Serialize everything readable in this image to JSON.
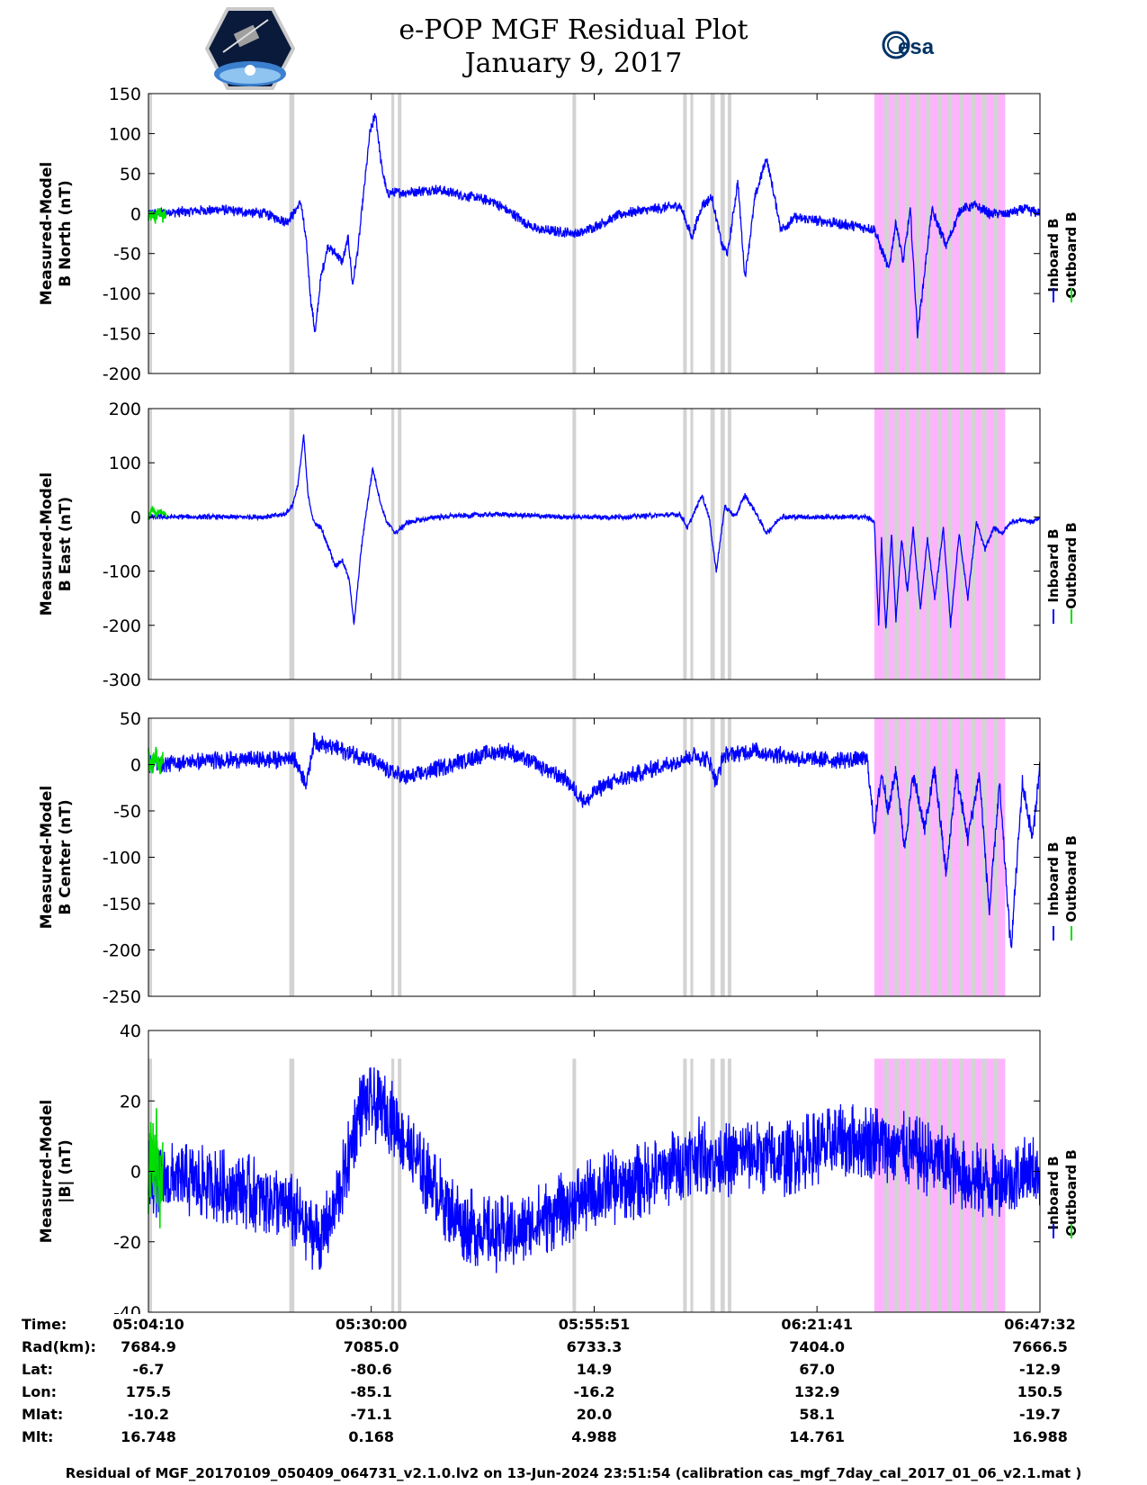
{
  "title": {
    "line1": "e-POP MGF Residual Plot",
    "line2": "January 9, 2017"
  },
  "logos": {
    "left": "e-POP CASSIOPE mission patch",
    "right_text": "esa"
  },
  "colors": {
    "inboard": "#0000ff",
    "outboard": "#00dd00",
    "gray_band": "#d3d3d3",
    "pink_band": "#ffb3ff"
  },
  "x_axis": {
    "t_start_s": 0,
    "t_end_s": 6202,
    "ticks_s": [
      0,
      1550,
      3101,
      4651,
      6202
    ]
  },
  "gray_bands_s": [
    [
      0,
      25
    ],
    [
      980,
      1015
    ],
    [
      1690,
      1710
    ],
    [
      1735,
      1760
    ],
    [
      2950,
      2975
    ],
    [
      3720,
      3745
    ],
    [
      3770,
      3790
    ],
    [
      3910,
      3940
    ],
    [
      3980,
      4010
    ],
    [
      4030,
      4055
    ]
  ],
  "pink_region_s": [
    5050,
    5960
  ],
  "pink_gaps_s": [
    5120,
    5190,
    5265,
    5340,
    5410,
    5490,
    5560,
    5640,
    5720,
    5800,
    5880
  ],
  "legend": {
    "inboard": "Inboard B",
    "outboard": "Outboard B"
  },
  "chart_data": [
    {
      "type": "line",
      "ylabel": [
        "Measured-Model",
        "B North (nT)"
      ],
      "ylim": [
        -200,
        150
      ],
      "yticks": [
        150,
        100,
        50,
        0,
        -50,
        -100,
        -150,
        -200
      ],
      "noise": 7,
      "series": [
        {
          "name": "Inboard B",
          "color": "#0000ff",
          "x": [
            0,
            500,
            800,
            960,
            1010,
            1060,
            1100,
            1130,
            1160,
            1200,
            1250,
            1300,
            1350,
            1390,
            1420,
            1460,
            1500,
            1540,
            1580,
            1620,
            1660,
            2000,
            2400,
            2700,
            3000,
            3300,
            3700,
            3780,
            3850,
            3920,
            3990,
            4030,
            4100,
            4150,
            4220,
            4300,
            4400,
            4500,
            4700,
            4900,
            5050,
            5150,
            5200,
            5250,
            5300,
            5350,
            5450,
            5550,
            5650,
            5750,
            5850,
            5950,
            6100,
            6202
          ],
          "y": [
            0,
            5,
            0,
            -10,
            0,
            15,
            -40,
            -110,
            -150,
            -80,
            -40,
            -50,
            -60,
            -30,
            -90,
            -40,
            30,
            100,
            125,
            60,
            25,
            30,
            15,
            -20,
            -25,
            0,
            10,
            -30,
            10,
            20,
            -40,
            -50,
            40,
            -80,
            20,
            70,
            -20,
            -5,
            -10,
            -15,
            -20,
            -70,
            -10,
            -60,
            5,
            -150,
            5,
            -40,
            5,
            10,
            0,
            0,
            5,
            0
          ]
        },
        {
          "name": "Outboard B",
          "color": "#00dd00",
          "x": [
            0,
            25,
            50,
            75,
            100,
            125
          ],
          "y": [
            -5,
            2,
            -6,
            3,
            -4,
            0
          ]
        }
      ]
    },
    {
      "type": "line",
      "ylabel": [
        "Measured-Model",
        "B East (nT)"
      ],
      "ylim": [
        -300,
        200
      ],
      "yticks": [
        200,
        100,
        0,
        -100,
        -200,
        -300
      ],
      "noise": 5,
      "series": [
        {
          "name": "Inboard B",
          "color": "#0000ff",
          "x": [
            0,
            300,
            800,
            950,
            1000,
            1040,
            1080,
            1110,
            1150,
            1200,
            1260,
            1300,
            1350,
            1400,
            1430,
            1480,
            1510,
            1560,
            1620,
            1660,
            1720,
            1800,
            2000,
            2400,
            2900,
            3300,
            3700,
            3750,
            3800,
            3850,
            3900,
            3950,
            4010,
            4080,
            4150,
            4220,
            4300,
            4400,
            4700,
            5000,
            5050,
            5080,
            5100,
            5130,
            5170,
            5200,
            5240,
            5280,
            5320,
            5370,
            5420,
            5470,
            5530,
            5580,
            5640,
            5700,
            5760,
            5820,
            5880,
            5940,
            6000,
            6080,
            6150,
            6202
          ],
          "y": [
            0,
            0,
            0,
            5,
            20,
            60,
            150,
            40,
            -10,
            -20,
            -60,
            -90,
            -80,
            -120,
            -200,
            -60,
            0,
            90,
            20,
            -10,
            -30,
            -10,
            0,
            5,
            0,
            0,
            5,
            -20,
            10,
            40,
            0,
            -100,
            20,
            0,
            40,
            10,
            -30,
            0,
            0,
            0,
            -10,
            -200,
            -40,
            -210,
            -30,
            -190,
            -40,
            -140,
            -20,
            -170,
            -40,
            -150,
            -20,
            -200,
            -30,
            -150,
            -10,
            -60,
            -20,
            -30,
            -10,
            -5,
            -10,
            0
          ]
        },
        {
          "name": "Outboard B",
          "color": "#00dd00",
          "x": [
            0,
            25,
            50,
            75,
            100,
            125
          ],
          "y": [
            0,
            15,
            5,
            10,
            8,
            5
          ]
        }
      ]
    },
    {
      "type": "line",
      "ylabel": [
        "Measured-Model",
        "B Center (nT)"
      ],
      "ylim": [
        -250,
        50
      ],
      "yticks": [
        50,
        0,
        -50,
        -100,
        -150,
        -200,
        -250
      ],
      "noise": 10,
      "series": [
        {
          "name": "Inboard B",
          "color": "#0000ff",
          "x": [
            0,
            500,
            900,
            1000,
            1050,
            1100,
            1150,
            1250,
            1350,
            1450,
            1550,
            1650,
            1800,
            2000,
            2300,
            2500,
            2700,
            2900,
            3000,
            3050,
            3100,
            3200,
            3400,
            3600,
            3800,
            3900,
            3950,
            4000,
            4200,
            4600,
            5000,
            5050,
            5100,
            5150,
            5200,
            5260,
            5320,
            5400,
            5470,
            5550,
            5620,
            5700,
            5780,
            5850,
            5920,
            6000,
            6080,
            6150,
            6202
          ],
          "y": [
            0,
            5,
            5,
            10,
            -5,
            -20,
            25,
            20,
            15,
            10,
            5,
            -5,
            -15,
            -5,
            10,
            15,
            0,
            -15,
            -35,
            -40,
            -30,
            -20,
            -10,
            0,
            10,
            5,
            -20,
            10,
            15,
            5,
            5,
            -70,
            -10,
            -50,
            -5,
            -90,
            -10,
            -70,
            -5,
            -120,
            -10,
            -80,
            -10,
            -160,
            -20,
            -200,
            -20,
            -80,
            0
          ]
        },
        {
          "name": "Outboard B",
          "color": "#00dd00",
          "x": [
            0,
            25,
            50,
            75,
            100
          ],
          "y": [
            10,
            -5,
            8,
            -3,
            5
          ]
        }
      ]
    },
    {
      "type": "line",
      "ylabel": [
        "Measured-Model",
        "|B| (nT)"
      ],
      "ylim": [
        -40,
        40
      ],
      "yticks": [
        40,
        20,
        0,
        -20,
        -40
      ],
      "noise": 11,
      "series": [
        {
          "name": "Inboard B",
          "color": "#0000ff",
          "x": [
            0,
            300,
            600,
            900,
            1100,
            1200,
            1300,
            1400,
            1450,
            1500,
            1600,
            1700,
            1800,
            1900,
            2050,
            2200,
            2400,
            2600,
            2800,
            3000,
            3200,
            3400,
            3600,
            3800,
            4000,
            4200,
            4400,
            4600,
            4800,
            5000,
            5200,
            5400,
            5600,
            5800,
            6000,
            6202
          ],
          "y": [
            -2,
            -3,
            -5,
            -8,
            -15,
            -20,
            -10,
            5,
            15,
            20,
            18,
            15,
            8,
            0,
            -8,
            -15,
            -18,
            -17,
            -12,
            -8,
            -5,
            -3,
            0,
            5,
            3,
            5,
            3,
            6,
            8,
            9,
            7,
            4,
            1,
            -3,
            -2,
            0
          ]
        },
        {
          "name": "Outboard B",
          "color": "#00dd00",
          "x": [
            0,
            20,
            40,
            60,
            80,
            100
          ],
          "y": [
            -2,
            8,
            -5,
            6,
            -4,
            0
          ]
        }
      ]
    }
  ],
  "footer": {
    "labels": [
      "Time:",
      "Rad(km):",
      "Lat:",
      "Lon:",
      "Mlat:",
      "Mlt:"
    ],
    "columns": [
      [
        "05:04:10",
        "7684.9",
        "-6.7",
        "175.5",
        "-10.2",
        "16.748"
      ],
      [
        "05:30:00",
        "7085.0",
        "-80.6",
        "-85.1",
        "-71.1",
        "0.168"
      ],
      [
        "05:55:51",
        "6733.3",
        "14.9",
        "-16.2",
        "20.0",
        "4.988"
      ],
      [
        "06:21:41",
        "7404.0",
        "67.0",
        "132.9",
        "58.1",
        "14.761"
      ],
      [
        "06:47:32",
        "7666.5",
        "-12.9",
        "150.5",
        "-19.7",
        "16.988"
      ]
    ],
    "note": "Residual of MGF_20170109_050409_064731_v2.1.0.lv2 on 13-Jun-2024 23:51:54 (calibration cas_mgf_7day_cal_2017_01_06_v2.1.mat )"
  }
}
